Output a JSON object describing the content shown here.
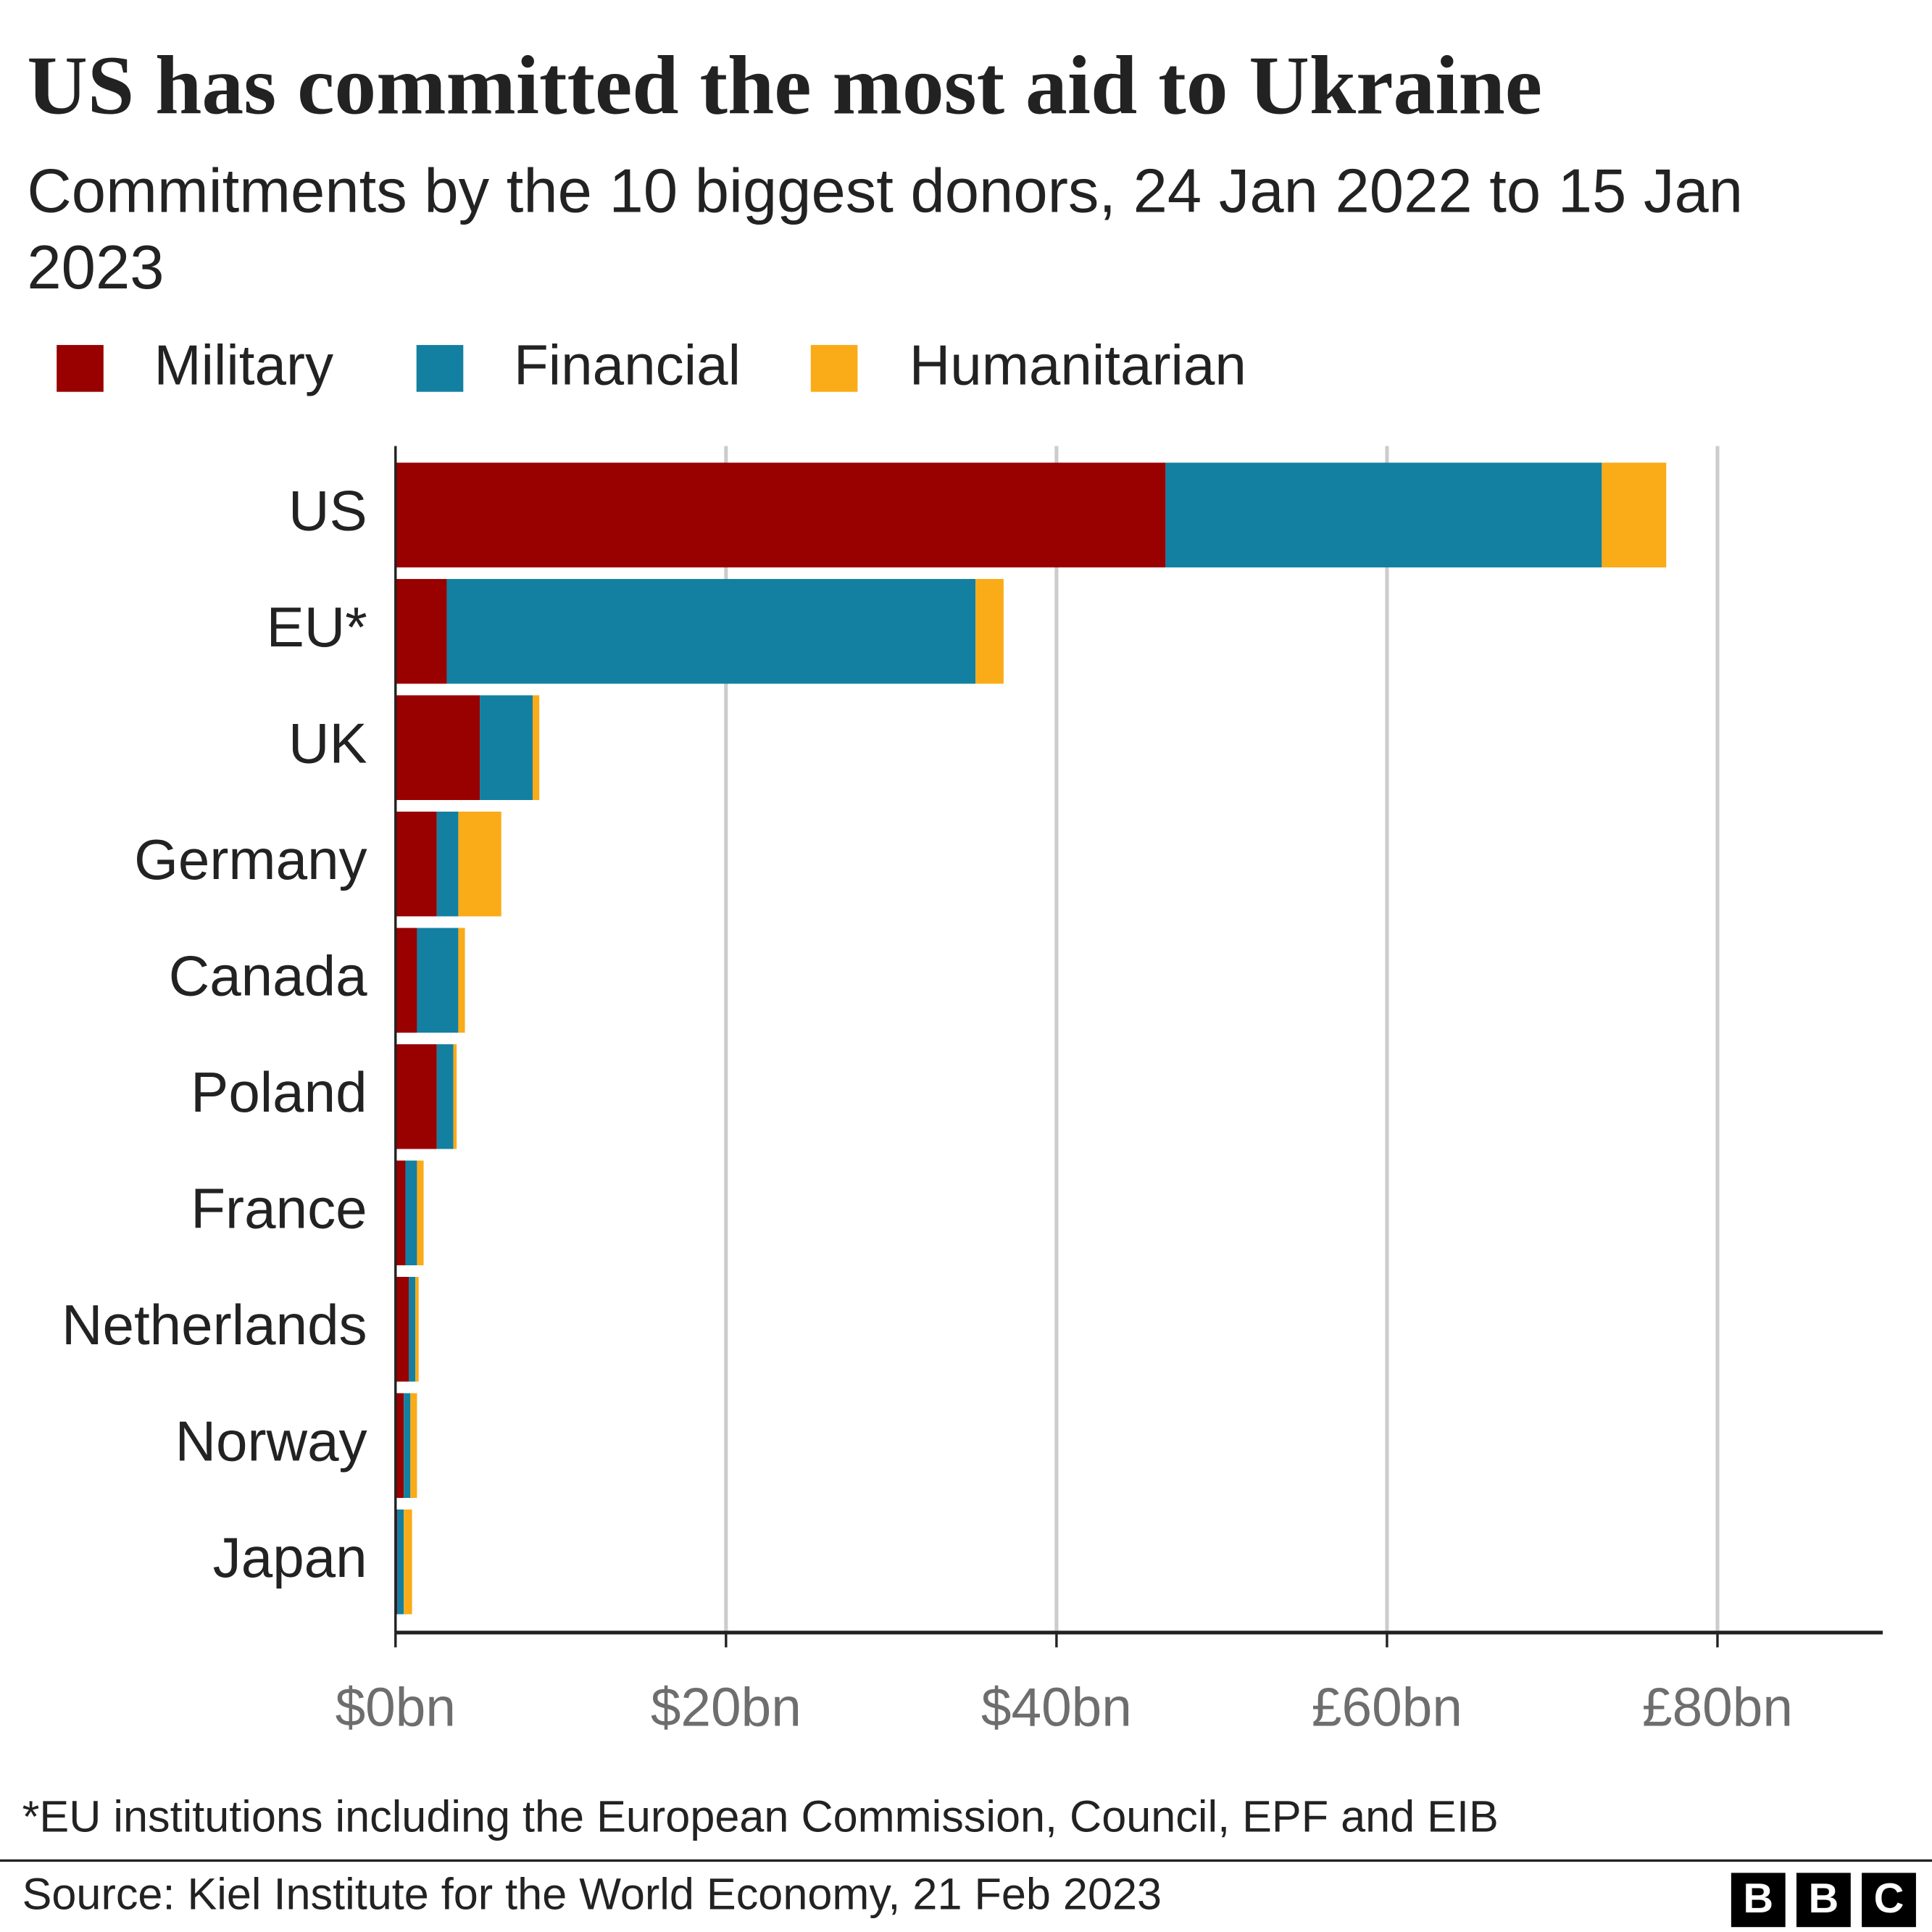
{
  "chart_data": {
    "type": "stacked-barh",
    "title": "US has committed the most aid to Ukraine",
    "subtitle": "Commitments by the 10 biggest donors, 24 Jan 2022 to 15 Jan 2023",
    "categories": [
      "US",
      "EU*",
      "UK",
      "Germany",
      "Canada",
      "Poland",
      "France",
      "Netherlands",
      "Norway",
      "Japan"
    ],
    "series": [
      {
        "name": "Military",
        "color": "#990000",
        "values": [
          46.6,
          3.1,
          5.1,
          2.5,
          1.3,
          2.5,
          0.6,
          0.8,
          0.5,
          0.1
        ]
      },
      {
        "name": "Financial",
        "color": "#1380a1",
        "values": [
          26.4,
          32.0,
          3.2,
          1.3,
          2.5,
          1.0,
          0.7,
          0.4,
          0.4,
          0.4
        ]
      },
      {
        "name": "Humanitarian",
        "color": "#faab18",
        "values": [
          3.9,
          1.7,
          0.4,
          2.6,
          0.4,
          0.2,
          0.4,
          0.2,
          0.4,
          0.5
        ]
      }
    ],
    "xlim": [
      0,
      90
    ],
    "xticks": [
      {
        "value": 0,
        "label": "$0bn"
      },
      {
        "value": 20,
        "label": "$20bn"
      },
      {
        "value": 40,
        "label": "$40bn"
      },
      {
        "value": 60,
        "label": "£60bn"
      },
      {
        "value": 80,
        "label": "£80bn"
      }
    ],
    "grid": true,
    "footnote": "*EU institutions including the European Commission, Council, EPF and EIB",
    "source": "Source: Kiel Institute for the World Economy, 21 Feb 2023",
    "logo": [
      "B",
      "B",
      "C"
    ]
  }
}
